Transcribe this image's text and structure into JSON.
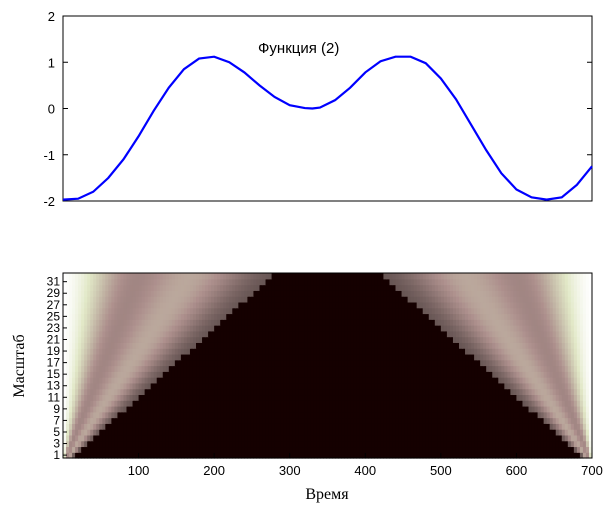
{
  "chart_data": [
    {
      "type": "line",
      "annotation": "Функция (2)",
      "xlim": [
        0,
        700
      ],
      "ylim": [
        -2,
        2
      ],
      "yticks": [
        "2",
        "1",
        "0",
        "-1",
        "-2"
      ],
      "series": [
        {
          "color": "#0000ff",
          "x": [
            0,
            20,
            40,
            60,
            80,
            100,
            120,
            140,
            160,
            180,
            200,
            220,
            240,
            260,
            280,
            300,
            320,
            330,
            340,
            360,
            380,
            400,
            420,
            440,
            460,
            480,
            500,
            520,
            540,
            560,
            580,
            600,
            620,
            640,
            660,
            680,
            700
          ],
          "y": [
            -1.97,
            -1.95,
            -1.8,
            -1.5,
            -1.1,
            -0.6,
            -0.05,
            0.45,
            0.85,
            1.08,
            1.12,
            1.0,
            0.78,
            0.5,
            0.25,
            0.07,
            0.01,
            0.0,
            0.02,
            0.18,
            0.45,
            0.78,
            1.02,
            1.12,
            1.12,
            0.98,
            0.65,
            0.2,
            -0.35,
            -0.9,
            -1.4,
            -1.75,
            -1.92,
            -1.97,
            -1.92,
            -1.65,
            -1.25
          ]
        }
      ]
    },
    {
      "type": "heatmap",
      "colormap": "pink",
      "xlabel": "Время",
      "ylabel": "Масштаб",
      "xlim": [
        0,
        700
      ],
      "xticks": [
        "100",
        "200",
        "300",
        "400",
        "500",
        "600",
        "700"
      ],
      "yticks": [
        "1",
        "3",
        "5",
        "7",
        "9",
        "11",
        "13",
        "15",
        "17",
        "19",
        "21",
        "23",
        "25",
        "27",
        "29",
        "31"
      ],
      "scales": 32
    }
  ]
}
